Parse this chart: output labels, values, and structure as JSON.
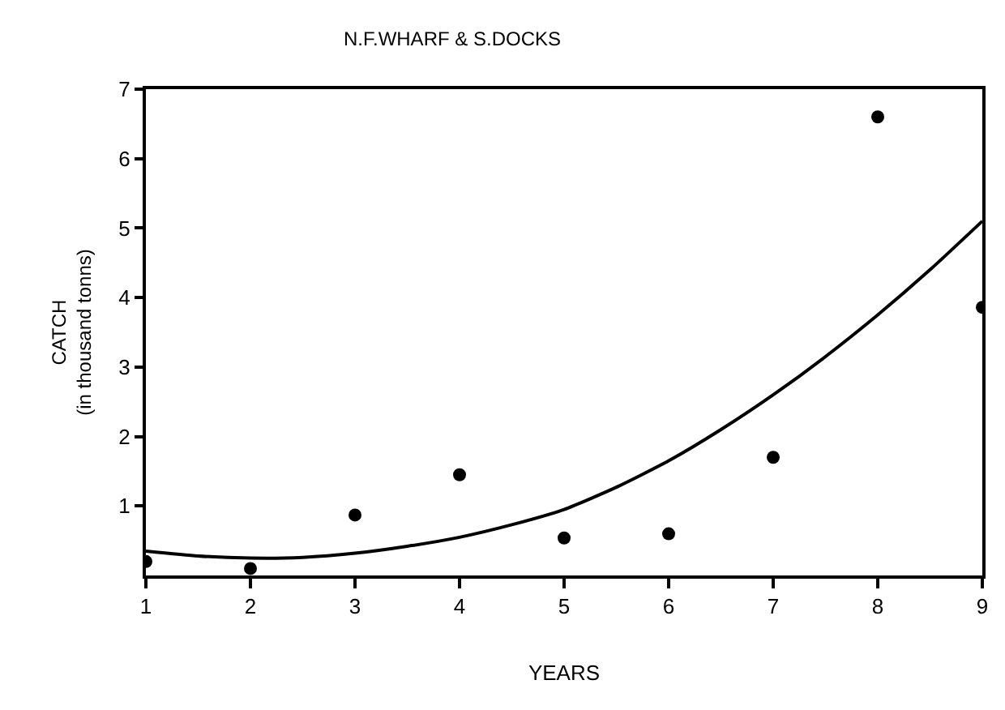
{
  "chart_data": {
    "type": "scatter",
    "title": "N.F.WHARF & S.DOCKS",
    "xlabel": "YEARS",
    "ylabel": "CATCH\n(in thousand tonns)",
    "x": [
      1,
      2,
      3,
      4,
      5,
      6,
      7,
      8,
      9
    ],
    "series": [
      {
        "color": "#000000",
        "marker": "circle",
        "values": [
          0.2,
          0.1,
          0.87,
          1.45,
          0.54,
          0.6,
          1.7,
          6.6,
          3.86
        ]
      },
      {
        "type": "line",
        "color": "#000000",
        "marker": "none",
        "line_style": "solid",
        "x": [
          1,
          1.5,
          2,
          2.5,
          3,
          3.5,
          4,
          4.5,
          5,
          5.5,
          6,
          6.5,
          7,
          7.5,
          8,
          8.5,
          9
        ],
        "values": [
          0.35,
          0.28,
          0.25,
          0.26,
          0.32,
          0.42,
          0.55,
          0.73,
          0.95,
          1.27,
          1.65,
          2.1,
          2.6,
          3.15,
          3.75,
          4.4,
          5.1
        ]
      }
    ],
    "xlim": [
      1,
      9
    ],
    "ylim": [
      0,
      7
    ],
    "xticks": [
      1,
      2,
      3,
      4,
      5,
      6,
      7,
      8,
      9
    ],
    "yticks": [
      1,
      2,
      3,
      4,
      5,
      6,
      7
    ]
  }
}
